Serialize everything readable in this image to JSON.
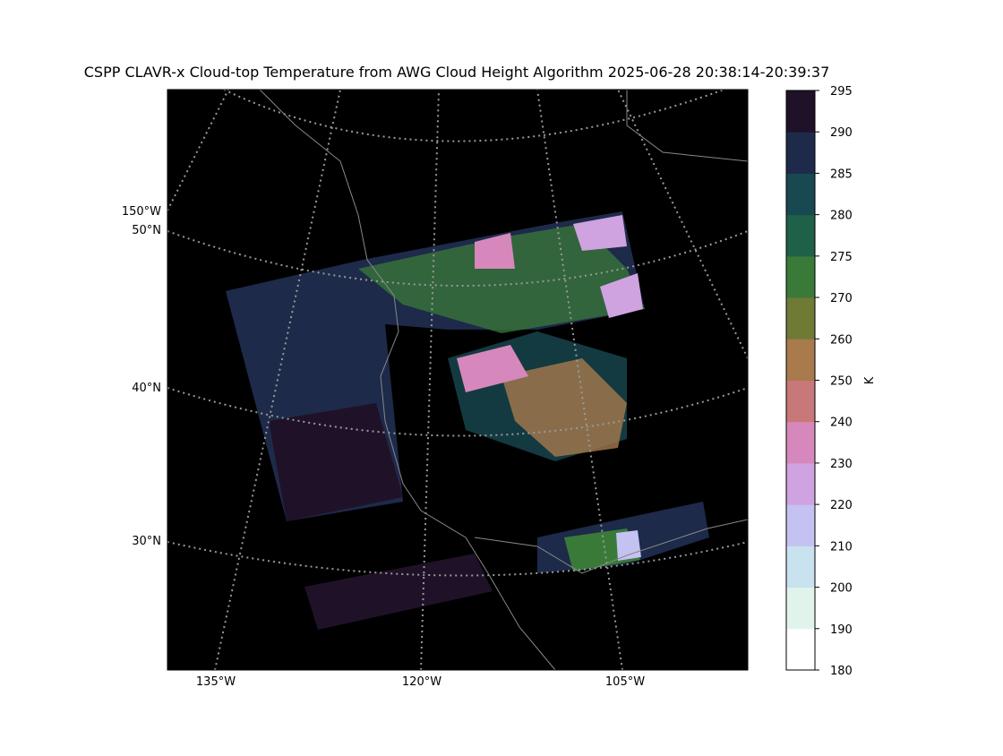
{
  "title": "CSPP CLAVR-x Cloud-top Temperature from AWG Cloud Height Algorithm 2025-06-28 20:38:14-20:39:37",
  "map": {
    "lat_labels": [
      "50°N",
      "40°N",
      "30°N"
    ],
    "lon_labels_left": [
      "150°W"
    ],
    "lon_labels_bottom": [
      "135°W",
      "120°W",
      "105°W"
    ]
  },
  "colorbar": {
    "label": "K",
    "ticks": [
      180,
      190,
      200,
      210,
      220,
      230,
      240,
      250,
      260,
      270,
      275,
      280,
      285,
      290,
      295
    ],
    "colors": [
      "#ffffff",
      "#e0f4ec",
      "#c8e2f0",
      "#c4c2f0",
      "#cfa2e0",
      "#d688bc",
      "#c87878",
      "#a87a4c",
      "#6f7a35",
      "#3a7a38",
      "#1e6048",
      "#184850",
      "#1d2a4a",
      "#1f1228"
    ]
  }
}
